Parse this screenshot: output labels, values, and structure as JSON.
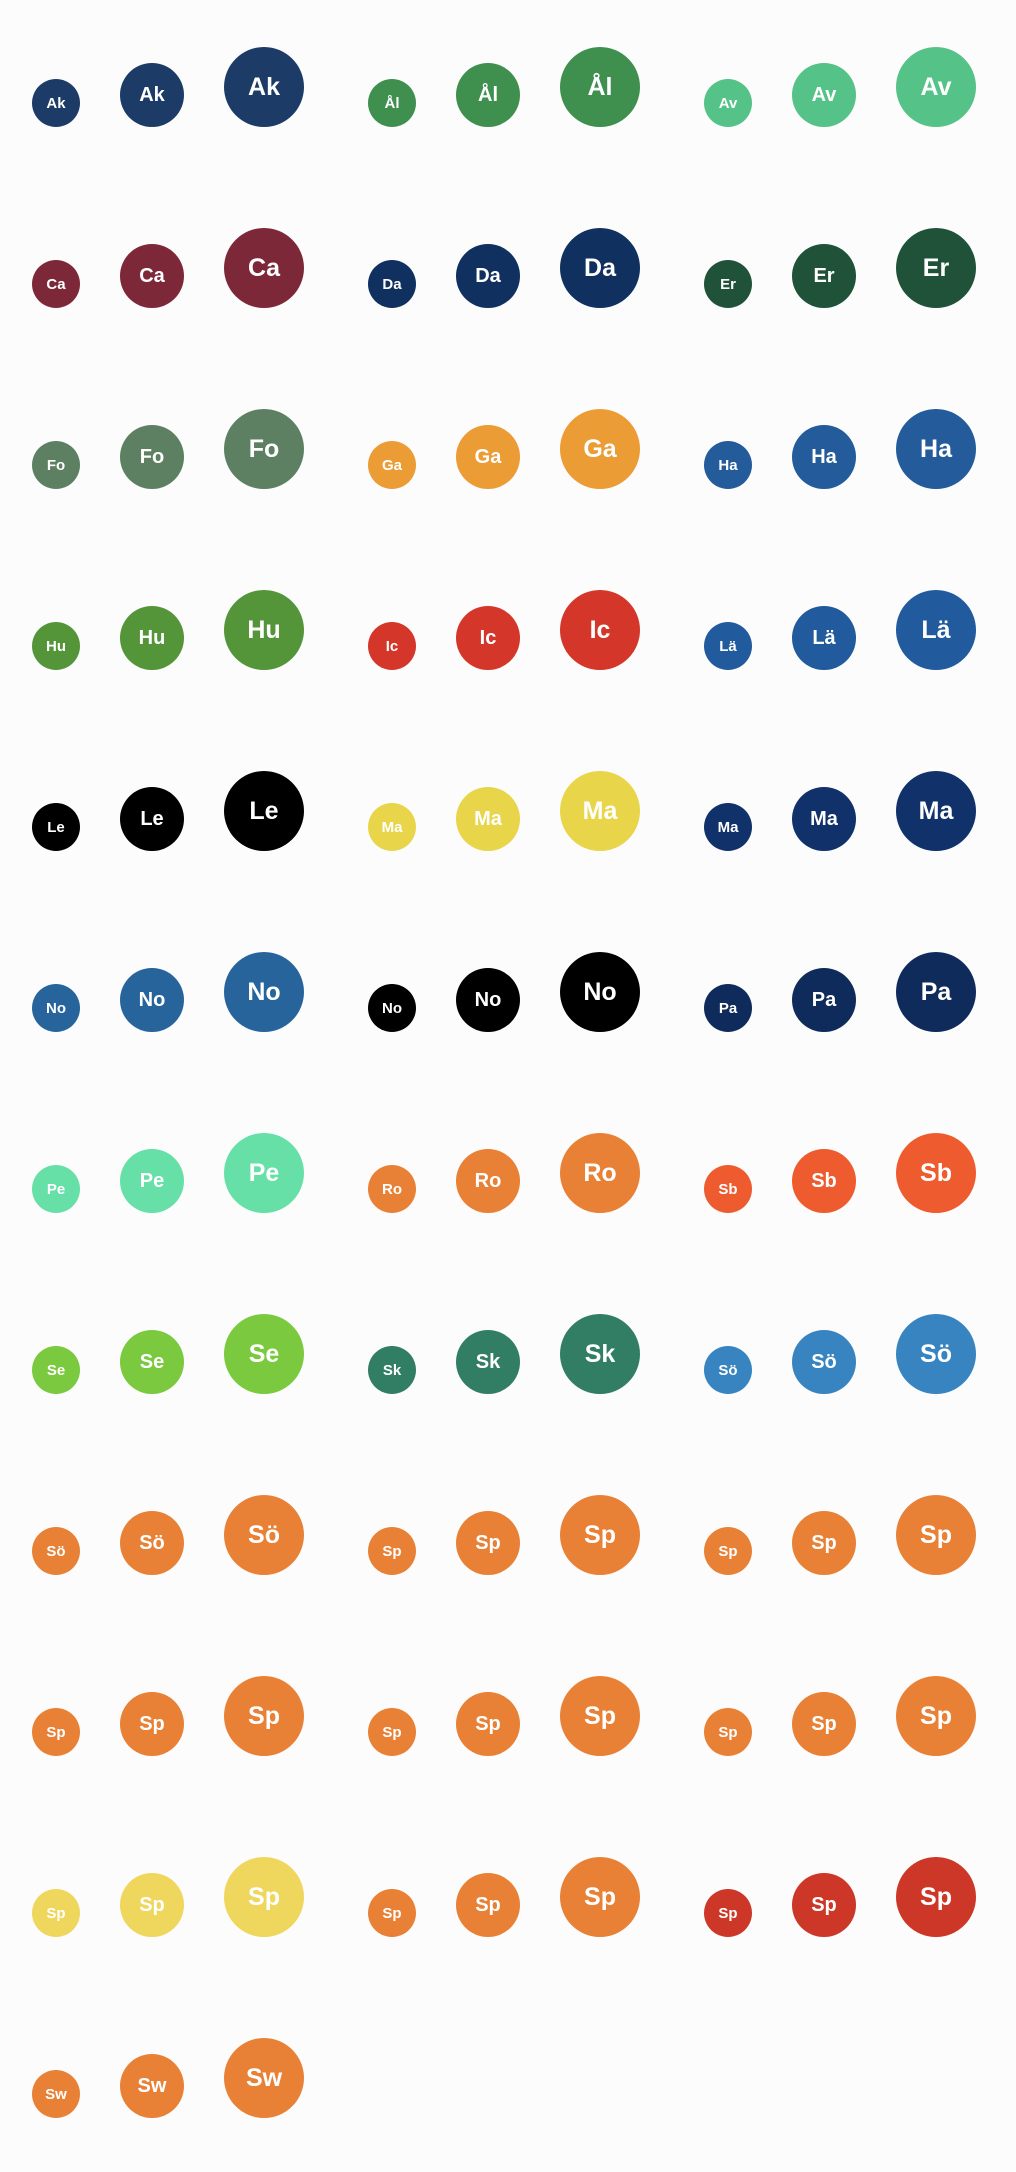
{
  "avatar_groups": [
    {
      "initials": "Ak",
      "color": "#1c3b66"
    },
    {
      "initials": "Ål",
      "color": "#3f8f4f"
    },
    {
      "initials": "Av",
      "color": "#55c288"
    },
    {
      "initials": "Ca",
      "color": "#7d2838"
    },
    {
      "initials": "Da",
      "color": "#10305f"
    },
    {
      "initials": "Er",
      "color": "#1f5239"
    },
    {
      "initials": "Fo",
      "color": "#5e8062"
    },
    {
      "initials": "Ga",
      "color": "#eb9c34"
    },
    {
      "initials": "Ha",
      "color": "#245b9a"
    },
    {
      "initials": "Hu",
      "color": "#54953a"
    },
    {
      "initials": "Ic",
      "color": "#d4372a"
    },
    {
      "initials": "Lä",
      "color": "#225a9e"
    },
    {
      "initials": "Le",
      "color": "#000000"
    },
    {
      "initials": "Ma",
      "color": "#e9d54a"
    },
    {
      "initials": "Ma",
      "color": "#10316a"
    },
    {
      "initials": "No",
      "color": "#27649c"
    },
    {
      "initials": "No",
      "color": "#000000"
    },
    {
      "initials": "Pa",
      "color": "#0f2b5b"
    },
    {
      "initials": "Pe",
      "color": "#66e0a7"
    },
    {
      "initials": "Ro",
      "color": "#e88136"
    },
    {
      "initials": "Sb",
      "color": "#ed5b2e"
    },
    {
      "initials": "Se",
      "color": "#7bc93e"
    },
    {
      "initials": "Sk",
      "color": "#327e65"
    },
    {
      "initials": "Sö",
      "color": "#3784c0"
    },
    {
      "initials": "Sö",
      "color": "#e88136"
    },
    {
      "initials": "Sp",
      "color": "#e88136"
    },
    {
      "initials": "Sp",
      "color": "#e88136"
    },
    {
      "initials": "Sp",
      "color": "#e88136"
    },
    {
      "initials": "Sp",
      "color": "#e88136"
    },
    {
      "initials": "Sp",
      "color": "#e88136"
    },
    {
      "initials": "Sp",
      "color": "#efd65c"
    },
    {
      "initials": "Sp",
      "color": "#e88136"
    },
    {
      "initials": "Sp",
      "color": "#cc3727"
    },
    {
      "initials": "Sw",
      "color": "#e88136"
    }
  ]
}
